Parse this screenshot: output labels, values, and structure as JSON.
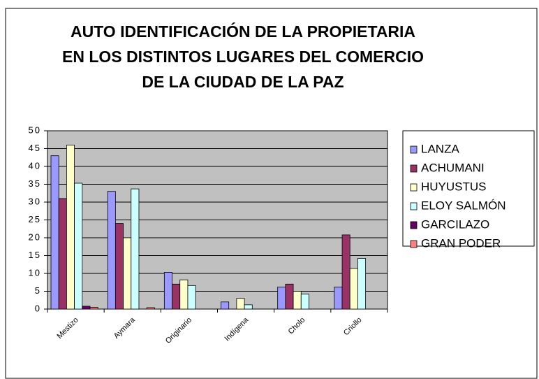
{
  "chart_data": {
    "type": "bar",
    "title_lines": [
      "AUTO IDENTIFICACIÓN DE LA PROPIETARIA",
      "EN LOS DISTINTOS LUGARES DEL COMERCIO",
      "DE LA CIUDAD DE LA PAZ"
    ],
    "categories": [
      "Mestizo",
      "Aymara",
      "Originario",
      "Indígena",
      "Cholo",
      "Criollo"
    ],
    "series": [
      {
        "name": "LANZA",
        "color": "#9999ff",
        "values": [
          43,
          33,
          10.3,
          2,
          6.2,
          6.2
        ]
      },
      {
        "name": "ACHUMANI",
        "color": "#993366",
        "values": [
          31,
          24,
          7,
          0,
          7,
          20.8
        ]
      },
      {
        "name": "HUYUSTUS",
        "color": "#ffffcc",
        "values": [
          46,
          20,
          8.2,
          3,
          5,
          11.4
        ]
      },
      {
        "name": "ELOY SALMÓN",
        "color": "#ccffff",
        "values": [
          35.3,
          33.7,
          6.6,
          1.2,
          4.2,
          14.2
        ]
      },
      {
        "name": "GARCILAZO",
        "color": "#660066",
        "values": [
          0.8,
          0,
          0,
          0,
          0,
          0
        ]
      },
      {
        "name": "GRAN PODER",
        "color": "#ff8080",
        "values": [
          0.5,
          0.4,
          0,
          0,
          0,
          0
        ]
      }
    ],
    "ylim": [
      0,
      50
    ],
    "yticks": [
      0,
      5,
      10,
      15,
      20,
      25,
      30,
      35,
      40,
      45,
      50
    ],
    "grid": true,
    "plot_background": "#c0c0c0",
    "legend": "right"
  }
}
